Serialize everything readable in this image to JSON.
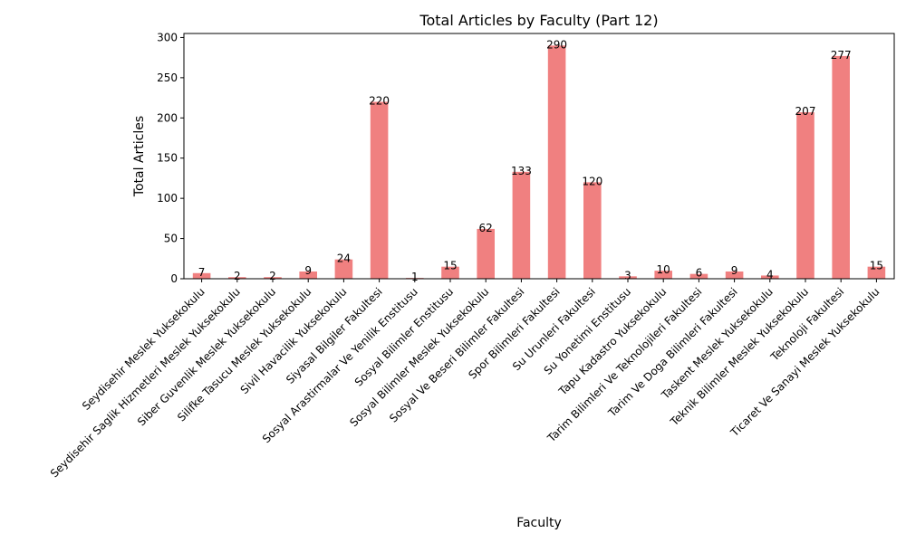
{
  "chart_data": {
    "type": "bar",
    "title": "Total Articles by Faculty (Part 12)",
    "xlabel": "Faculty",
    "ylabel": "Total Articles",
    "ylim": [
      0,
      305
    ],
    "yticks": [
      0,
      50,
      100,
      150,
      200,
      250,
      300
    ],
    "bar_color": "#f08080",
    "grid": false,
    "categories": [
      "Seydisehir Meslek Yuksekokulu",
      "Seydisehir Saglik Hizmetleri Meslek Yuksekokulu",
      "Siber Guvenlik Meslek Yuksekokulu",
      "Silifke Tasucu Meslek Yuksekokulu",
      "Sivil Havacilik Yuksekokulu",
      "Siyasal Bilgiler Fakultesi",
      "Sosyal Arastirmalar Ve Yenilik Enstitusu",
      "Sosyal Bilimler Enstitusu",
      "Sosyal Bilimler Meslek Yuksekokulu",
      "Sosyal Ve Beseri Bilimler Fakultesi",
      "Spor Bilimleri Fakultesi",
      "Su Urunleri Fakultesi",
      "Su Yonetimi Enstitusu",
      "Tapu Kadastro Yuksekokulu",
      "Tarim Bilimleri Ve Teknolojileri Fakultesi",
      "Tarim Ve Doga Bilimleri Fakultesi",
      "Taskent Meslek Yuksekokulu",
      "Teknik Bilimler Meslek Yuksekokulu",
      "Teknoloji Fakultesi",
      "Ticaret Ve Sanayi Meslek Yuksekokulu"
    ],
    "values": [
      7,
      2,
      2,
      9,
      24,
      220,
      1,
      15,
      62,
      133,
      290,
      120,
      3,
      10,
      6,
      9,
      4,
      207,
      277,
      15
    ]
  }
}
